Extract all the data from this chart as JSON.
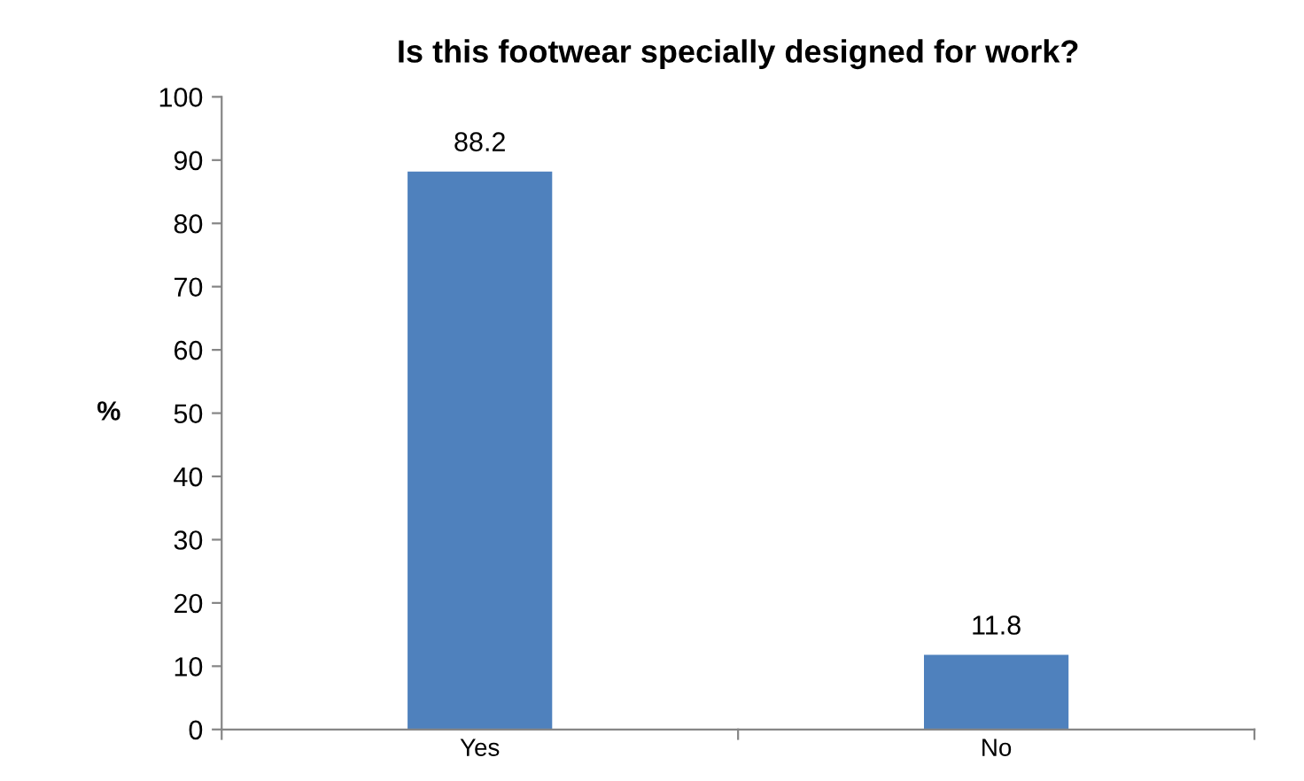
{
  "chart_data": {
    "type": "bar",
    "title": "Is this footwear specially designed for work?",
    "ylabel": "%",
    "categories": [
      "Yes",
      "No"
    ],
    "values": [
      88.2,
      11.8
    ],
    "color": "#4f81bd",
    "ylim": [
      0,
      100
    ],
    "yticks": [
      0,
      10,
      20,
      30,
      40,
      50,
      60,
      70,
      80,
      90,
      100
    ],
    "data_labels": true
  }
}
